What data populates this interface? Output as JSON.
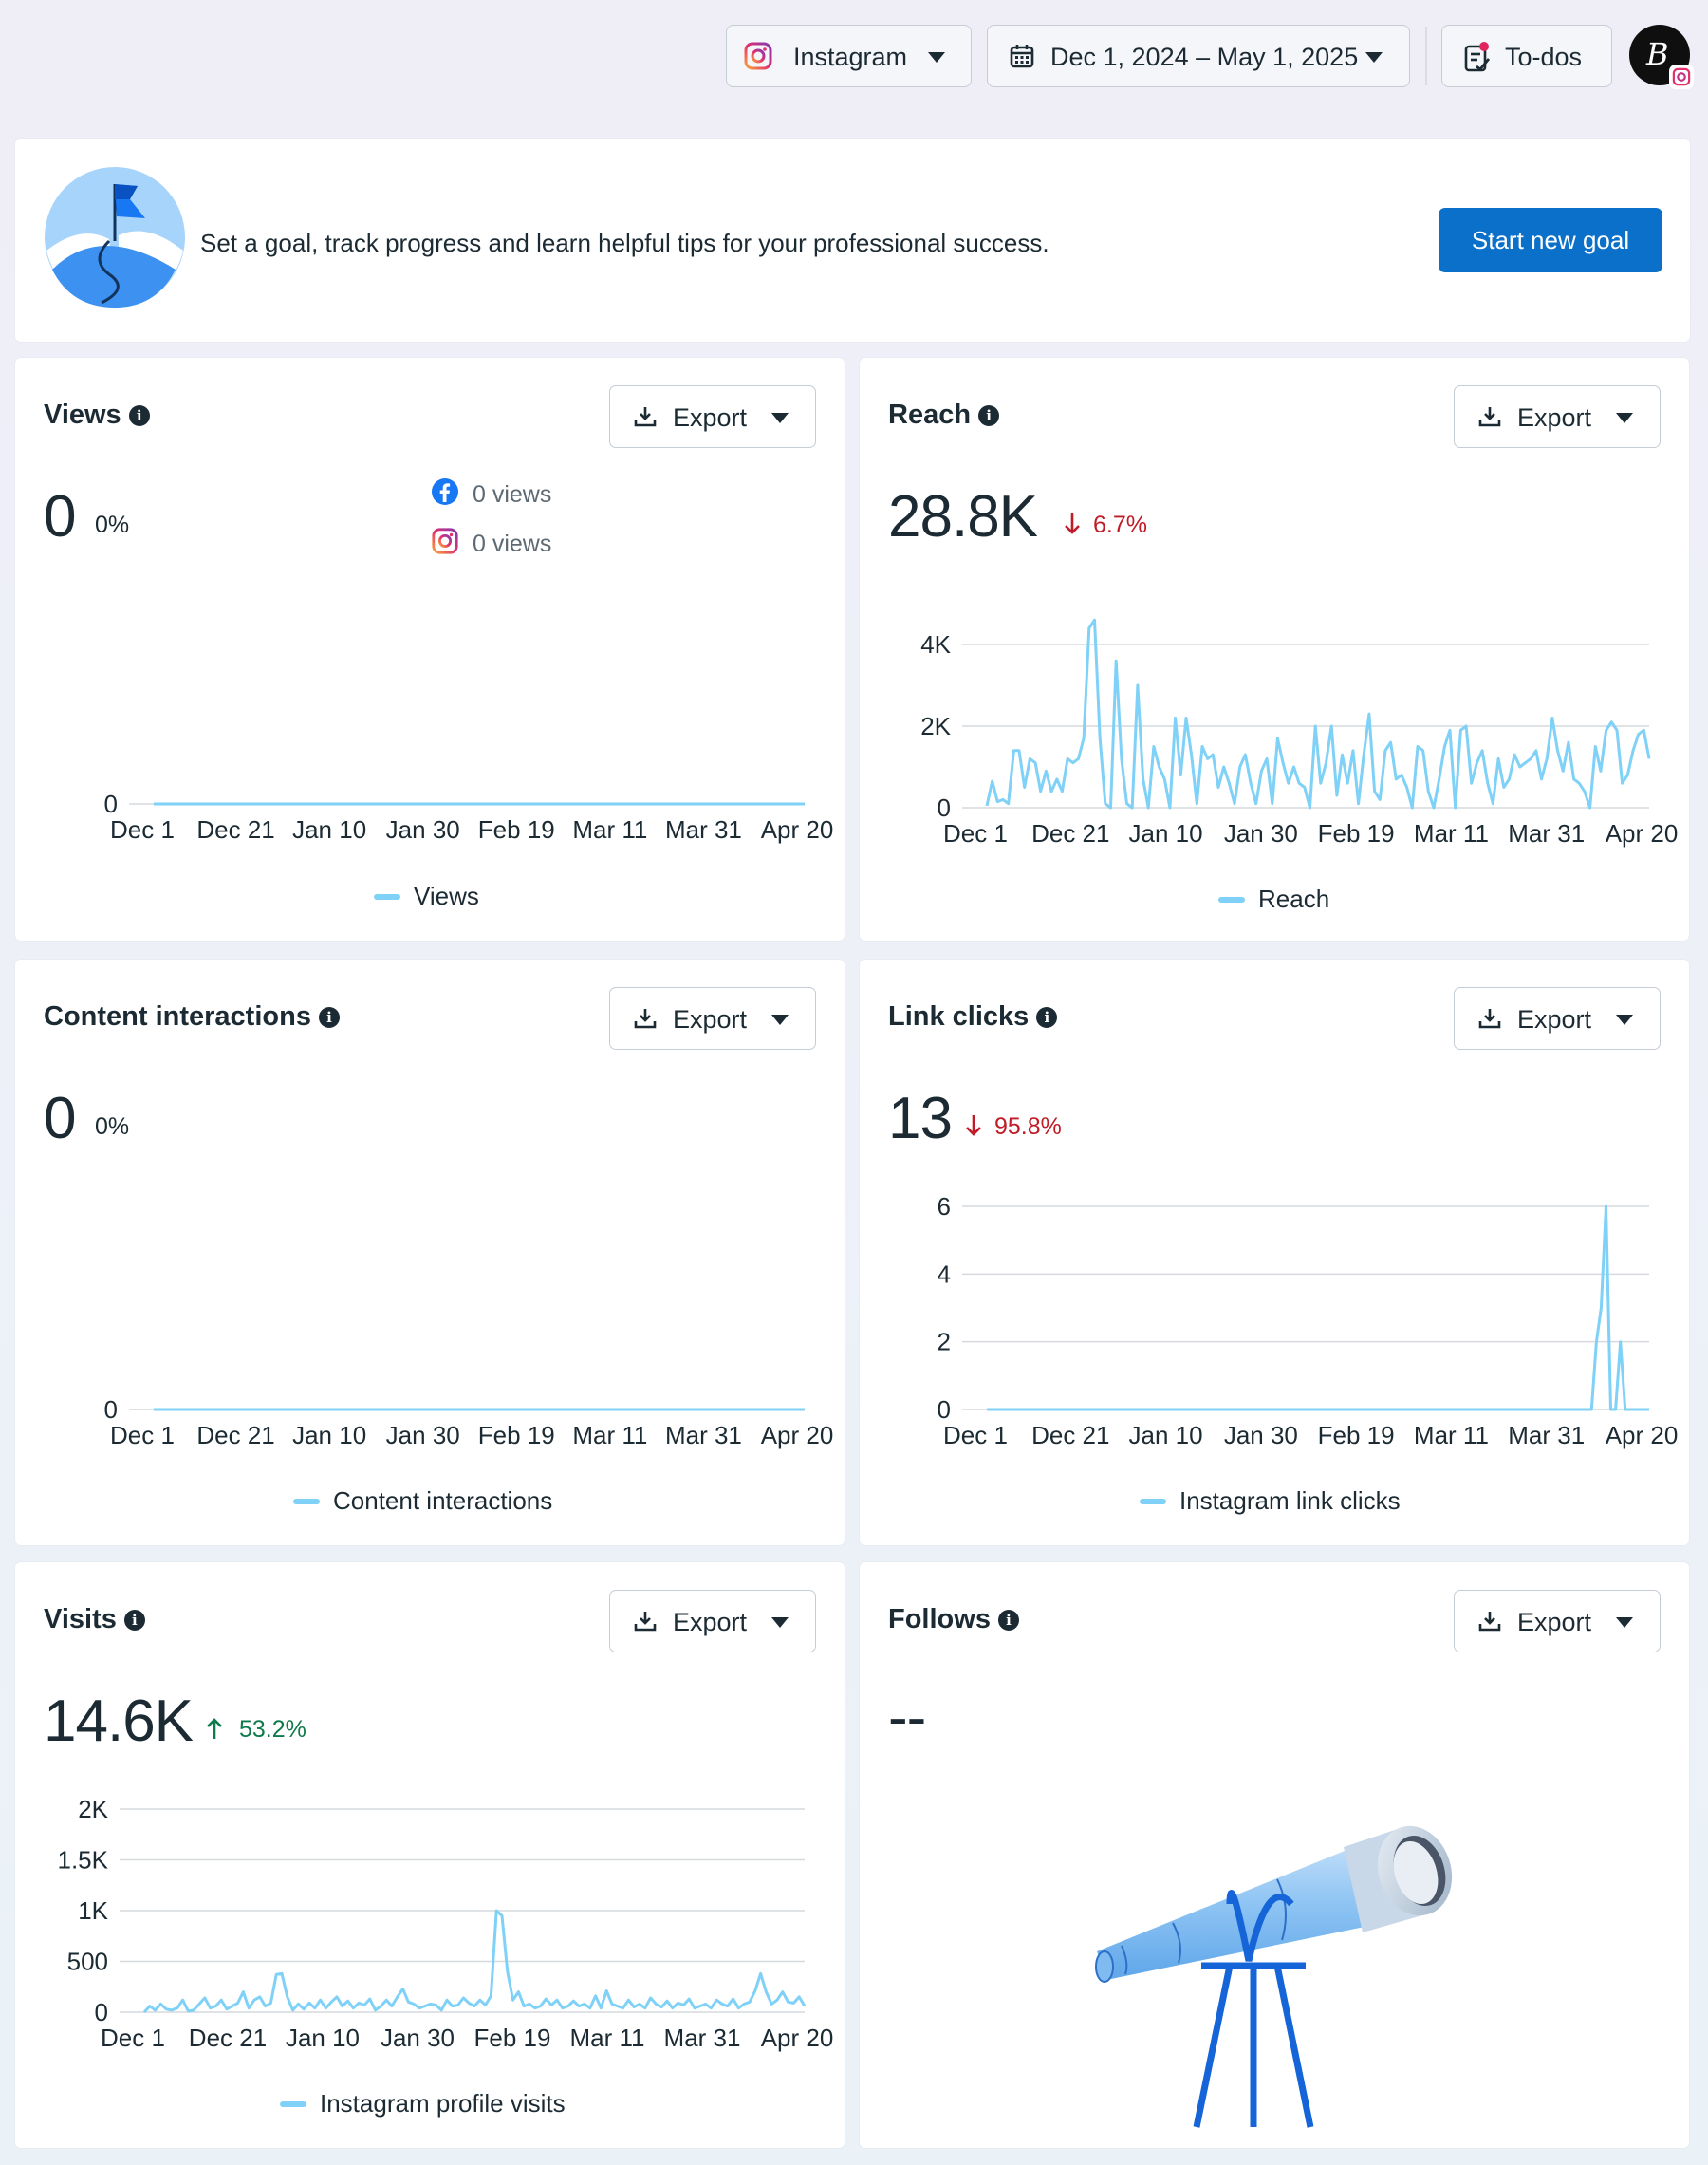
{
  "header": {
    "platform_label": "Instagram",
    "date_range": "Dec 1, 2024 – May 1, 2025",
    "todos_label": "To-dos",
    "avatar_initial": "B"
  },
  "goal_banner": {
    "text": "Set a goal, track progress and learn helpful tips for your professional success.",
    "button_label": "Start new goal"
  },
  "export_label": "Export",
  "x_ticks": [
    "Dec 1",
    "Dec 21",
    "Jan 10",
    "Jan 30",
    "Feb 19",
    "Mar 11",
    "Mar 31",
    "Apr 20"
  ],
  "cards": {
    "views": {
      "title": "Views",
      "value": "0",
      "delta": "0%",
      "facebook_views": "0 views",
      "instagram_views": "0 views",
      "legend": "Views"
    },
    "reach": {
      "title": "Reach",
      "value": "28.8K",
      "delta": "6.7%",
      "legend": "Reach"
    },
    "interactions": {
      "title": "Content interactions",
      "value": "0",
      "delta": "0%",
      "legend": "Content interactions"
    },
    "link_clicks": {
      "title": "Link clicks",
      "value": "13",
      "delta": "95.8%",
      "legend": "Instagram link clicks"
    },
    "visits": {
      "title": "Visits",
      "value": "14.6K",
      "delta": "53.2%",
      "legend": "Instagram profile visits"
    },
    "follows": {
      "title": "Follows",
      "value": "--"
    }
  },
  "colors": {
    "series": "#7fd1f7",
    "accent_button": "#0b70c9",
    "negative": "#c01c28",
    "positive": "#0f7a4b"
  },
  "chart_data": [
    {
      "id": "views",
      "type": "line",
      "x": [
        "Dec 1",
        "Dec 21",
        "Jan 10",
        "Jan 30",
        "Feb 19",
        "Mar 11",
        "Mar 31",
        "Apr 20"
      ],
      "series": [
        {
          "name": "Views",
          "values": [
            0,
            0,
            0,
            0,
            0,
            0,
            0,
            0
          ]
        }
      ],
      "y_ticks": [
        "0"
      ],
      "ylim": [
        0,
        1
      ]
    },
    {
      "id": "reach",
      "type": "line",
      "x_start": "Dec 1",
      "series": [
        {
          "name": "Reach",
          "values": [
            50,
            650,
            150,
            200,
            100,
            1400,
            1400,
            500,
            1200,
            1100,
            400,
            900,
            400,
            700,
            400,
            1200,
            1100,
            1200,
            1700,
            4400,
            4600,
            1700,
            100,
            0,
            3600,
            1200,
            100,
            0,
            3000,
            700,
            0,
            1500,
            1000,
            700,
            0,
            2200,
            800,
            2200,
            1300,
            100,
            1500,
            1200,
            1300,
            500,
            1000,
            600,
            100,
            1000,
            1300,
            600,
            100,
            900,
            1200,
            100,
            1700,
            1100,
            600,
            1000,
            600,
            500,
            0,
            2000,
            600,
            1100,
            2000,
            300,
            1300,
            600,
            1400,
            100,
            1300,
            2300,
            400,
            200,
            1400,
            1600,
            700,
            800,
            500,
            0,
            1500,
            1400,
            400,
            0,
            700,
            1500,
            1900,
            0,
            1900,
            2000,
            600,
            1100,
            1400,
            600,
            100,
            1200,
            500,
            700,
            1300,
            1000,
            1100,
            1200,
            1400,
            700,
            1200,
            2200,
            1400,
            900,
            1600,
            700,
            600,
            400,
            0,
            1500,
            900,
            1900,
            2100,
            1900,
            600,
            800,
            1400,
            1800,
            1900,
            1200
          ]
        }
      ],
      "y_ticks": [
        "0",
        "2K",
        "4K"
      ],
      "ylim": [
        0,
        4000
      ]
    },
    {
      "id": "interactions",
      "type": "line",
      "x": [
        "Dec 1",
        "Dec 21",
        "Jan 10",
        "Jan 30",
        "Feb 19",
        "Mar 11",
        "Mar 31",
        "Apr 20"
      ],
      "series": [
        {
          "name": "Content interactions",
          "values": [
            0,
            0,
            0,
            0,
            0,
            0,
            0,
            0
          ]
        }
      ],
      "y_ticks": [
        "0"
      ],
      "ylim": [
        0,
        1
      ]
    },
    {
      "id": "link_clicks",
      "type": "line",
      "x_start": "Dec 1",
      "series": [
        {
          "name": "Instagram link clicks",
          "values": [
            0,
            0,
            0,
            0,
            0,
            0,
            0,
            0,
            0,
            0,
            0,
            0,
            0,
            0,
            0,
            0,
            0,
            0,
            0,
            0,
            0,
            0,
            0,
            0,
            0,
            0,
            0,
            0,
            0,
            0,
            0,
            0,
            0,
            0,
            0,
            0,
            0,
            0,
            0,
            0,
            0,
            0,
            0,
            0,
            0,
            0,
            0,
            0,
            0,
            0,
            0,
            0,
            0,
            0,
            0,
            0,
            0,
            0,
            0,
            0,
            0,
            0,
            0,
            0,
            0,
            0,
            0,
            0,
            0,
            0,
            0,
            0,
            0,
            0,
            0,
            0,
            0,
            0,
            0,
            0,
            0,
            0,
            0,
            0,
            0,
            0,
            0,
            0,
            0,
            0,
            0,
            0,
            0,
            0,
            0,
            0,
            0,
            0,
            0,
            0,
            0,
            0,
            0,
            0,
            0,
            0,
            0,
            0,
            0,
            0,
            0,
            0,
            0,
            0,
            0,
            0,
            0,
            0,
            0,
            0,
            0,
            0,
            0,
            0,
            0,
            0,
            0,
            2,
            3,
            6,
            0,
            0,
            2,
            0,
            0,
            0,
            0,
            0,
            0
          ]
        }
      ],
      "y_ticks": [
        "0",
        "2",
        "4",
        "6"
      ],
      "ylim": [
        0,
        6
      ]
    },
    {
      "id": "visits",
      "type": "line",
      "x_start": "Dec 1",
      "series": [
        {
          "name": "Instagram profile visits",
          "values": [
            0,
            60,
            20,
            80,
            30,
            20,
            40,
            120,
            10,
            20,
            80,
            140,
            40,
            60,
            120,
            30,
            60,
            90,
            200,
            40,
            120,
            150,
            60,
            90,
            370,
            380,
            150,
            20,
            80,
            30,
            90,
            40,
            120,
            40,
            100,
            150,
            60,
            110,
            40,
            90,
            70,
            130,
            20,
            60,
            120,
            60,
            150,
            230,
            100,
            80,
            40,
            60,
            80,
            70,
            20,
            120,
            60,
            70,
            140,
            90,
            60,
            120,
            70,
            160,
            1000,
            950,
            400,
            120,
            200,
            60,
            80,
            40,
            60,
            130,
            70,
            120,
            40,
            60,
            110,
            60,
            80,
            40,
            160,
            40,
            210,
            80,
            60,
            40,
            120,
            50,
            80,
            40,
            140,
            80,
            50,
            110,
            40,
            90,
            70,
            130,
            40,
            60,
            80,
            40,
            120,
            80,
            60,
            130,
            40,
            80,
            100,
            210,
            380,
            200,
            80,
            120,
            200,
            100,
            90,
            150,
            60
          ]
        }
      ],
      "y_ticks": [
        "0",
        "500",
        "1K",
        "1.5K",
        "2K"
      ],
      "ylim": [
        0,
        2000
      ]
    }
  ]
}
